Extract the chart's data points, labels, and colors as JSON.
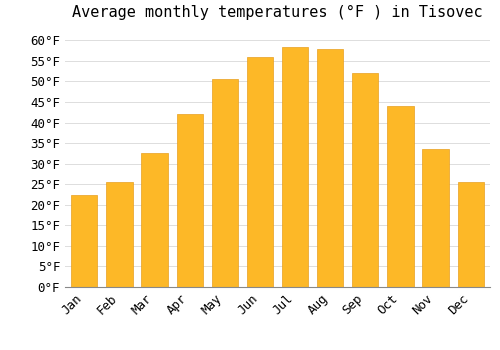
{
  "title": "Average monthly temperatures (°F ) in Tisovec",
  "months": [
    "Jan",
    "Feb",
    "Mar",
    "Apr",
    "May",
    "Jun",
    "Jul",
    "Aug",
    "Sep",
    "Oct",
    "Nov",
    "Dec"
  ],
  "values": [
    22.5,
    25.5,
    32.5,
    42.0,
    50.5,
    56.0,
    58.5,
    58.0,
    52.0,
    44.0,
    33.5,
    25.5
  ],
  "bar_color": "#FDB827",
  "bar_edge_color": "#E8A020",
  "background_color": "#FFFFFF",
  "grid_color": "#DDDDDD",
  "ylim": [
    0,
    63
  ],
  "yticks": [
    0,
    5,
    10,
    15,
    20,
    25,
    30,
    35,
    40,
    45,
    50,
    55,
    60
  ],
  "title_fontsize": 11,
  "tick_fontsize": 9,
  "bar_width": 0.75
}
